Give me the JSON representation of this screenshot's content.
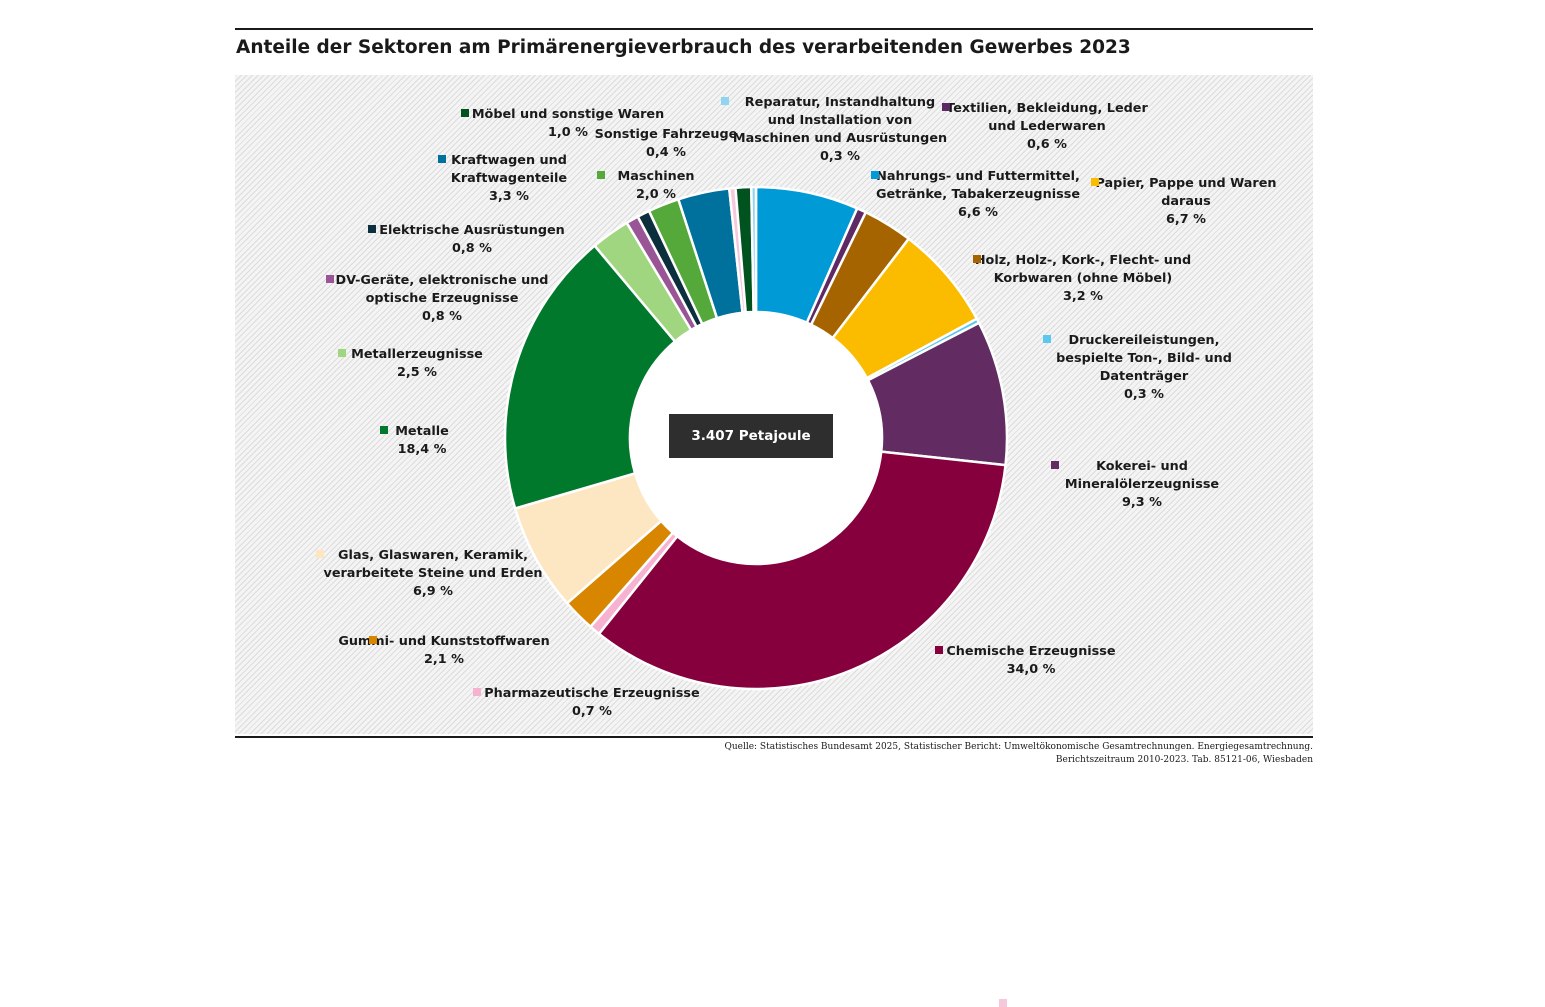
{
  "title": "Anteile der Sektoren am Primärenergieverbrauch des verarbeitenden Gewerbes 2023",
  "center_label": "3.407 Petajoule",
  "source": {
    "line1": "Quelle: Statistisches Bundesamt 2025, Statistischer Bericht: Umweltökonomische Gesamtrechnungen. Energiegesamtrechnung.",
    "line2": "Berichtszeitraum 2010-2023. Tab. 85121-06, Wiesbaden"
  },
  "chart_data": {
    "type": "pie",
    "title": "Anteile der Sektoren am Primärenergieverbrauch des verarbeitenden Gewerbes 2023",
    "total_label": "3.407 Petajoule",
    "unit": "%",
    "slices": [
      {
        "label_lines": [
          "Nahrungs- und Futtermittel,",
          "Getränke, Tabakerzeugnisse"
        ],
        "value": 6.6,
        "value_label": "6,6 %",
        "color": "#009bd6"
      },
      {
        "label_lines": [
          "Textilien, Bekleidung, Leder",
          "und Lederwaren"
        ],
        "value": 0.6,
        "value_label": "0,6 %",
        "color": "#5e2a63"
      },
      {
        "label_lines": [
          "Holz, Holz-, Kork-, Flecht- und",
          "Korbwaren (ohne Möbel)"
        ],
        "value": 3.2,
        "value_label": "3,2 %",
        "color": "#a56400"
      },
      {
        "label_lines": [
          "Papier, Pappe und Waren",
          "daraus"
        ],
        "value": 6.7,
        "value_label": "6,7 %",
        "color": "#fbbc00"
      },
      {
        "label_lines": [
          "Druckereileistungen,",
          "bespielte Ton-, Bild- und",
          "Datenträger"
        ],
        "value": 0.3,
        "value_label": "0,3 %",
        "color": "#5bc8f0"
      },
      {
        "label_lines": [
          "Kokerei- und",
          "Mineralölerzeugnisse"
        ],
        "value": 9.3,
        "value_label": "9,3 %",
        "color": "#622c63"
      },
      {
        "label_lines": [
          "Chemische Erzeugnisse"
        ],
        "value": 34.0,
        "value_label": "34,0 %",
        "color": "#85003c"
      },
      {
        "label_lines": [
          "Pharmazeutische Erzeugnisse"
        ],
        "value": 0.7,
        "value_label": "0,7 %",
        "color": "#f6b2d0"
      },
      {
        "label_lines": [
          "Gummi- und Kunststoffwaren"
        ],
        "value": 2.1,
        "value_label": "2,1 %",
        "color": "#d88600"
      },
      {
        "label_lines": [
          "Glas, Glaswaren, Keramik,",
          "verarbeitete Steine und Erden"
        ],
        "value": 6.9,
        "value_label": "6,9 %",
        "color": "#fde7c3"
      },
      {
        "label_lines": [
          "Metalle"
        ],
        "value": 18.4,
        "value_label": "18,4 %",
        "color": "#00792d"
      },
      {
        "label_lines": [
          "Metallerzeugnisse"
        ],
        "value": 2.5,
        "value_label": "2,5 %",
        "color": "#a0d67f"
      },
      {
        "label_lines": [
          "DV-Geräte, elektronische und",
          "optische Erzeugnisse"
        ],
        "value": 0.8,
        "value_label": "0,8 %",
        "color": "#9a5597"
      },
      {
        "label_lines": [
          "Elektrische Ausrüstungen"
        ],
        "value": 0.8,
        "value_label": "0,8 %",
        "color": "#0b2f3d"
      },
      {
        "label_lines": [
          "Maschinen"
        ],
        "value": 2.0,
        "value_label": "2,0 %",
        "color": "#55a83a"
      },
      {
        "label_lines": [
          "Kraftwagen und",
          "Kraftwagenteile"
        ],
        "value": 3.3,
        "value_label": "3,3 %",
        "color": "#00709c"
      },
      {
        "label_lines": [
          "Sonstige Fahrzeuge"
        ],
        "value": 0.4,
        "value_label": "0,4 %",
        "color": "#f6c8dc"
      },
      {
        "label_lines": [
          "Möbel und sonstige Waren"
        ],
        "value": 1.0,
        "value_label": "1,0 %",
        "color": "#00531f"
      },
      {
        "label_lines": [
          "Reparatur, Instandhaltung",
          "und Installation von",
          "Maschinen und Ausrüstungen"
        ],
        "value": 0.3,
        "value_label": "0,3 %",
        "color": "#8fd4f0"
      }
    ]
  }
}
